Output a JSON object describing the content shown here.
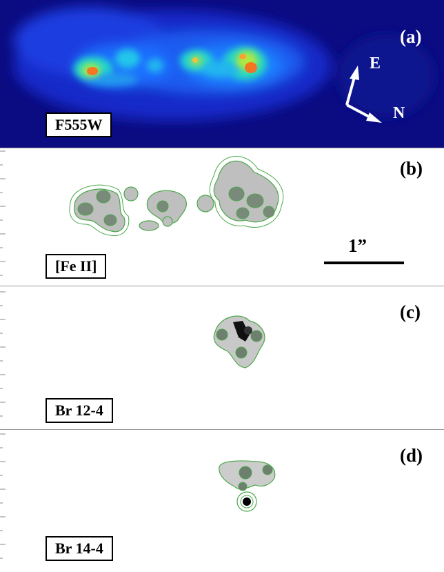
{
  "panels": [
    {
      "label": "(a)",
      "tag": "F555W"
    },
    {
      "label": "(b)",
      "tag": "[Fe II]"
    },
    {
      "label": "(c)",
      "tag": "Br 12-4"
    },
    {
      "label": "(d)",
      "tag": "Br 14-4"
    }
  ],
  "compass": {
    "east": "E",
    "north": "N"
  },
  "scale_bar": {
    "label": "1”"
  },
  "colors": {
    "contour": "#49a849",
    "background_a": "#0a0a8a",
    "border": "#000000"
  }
}
